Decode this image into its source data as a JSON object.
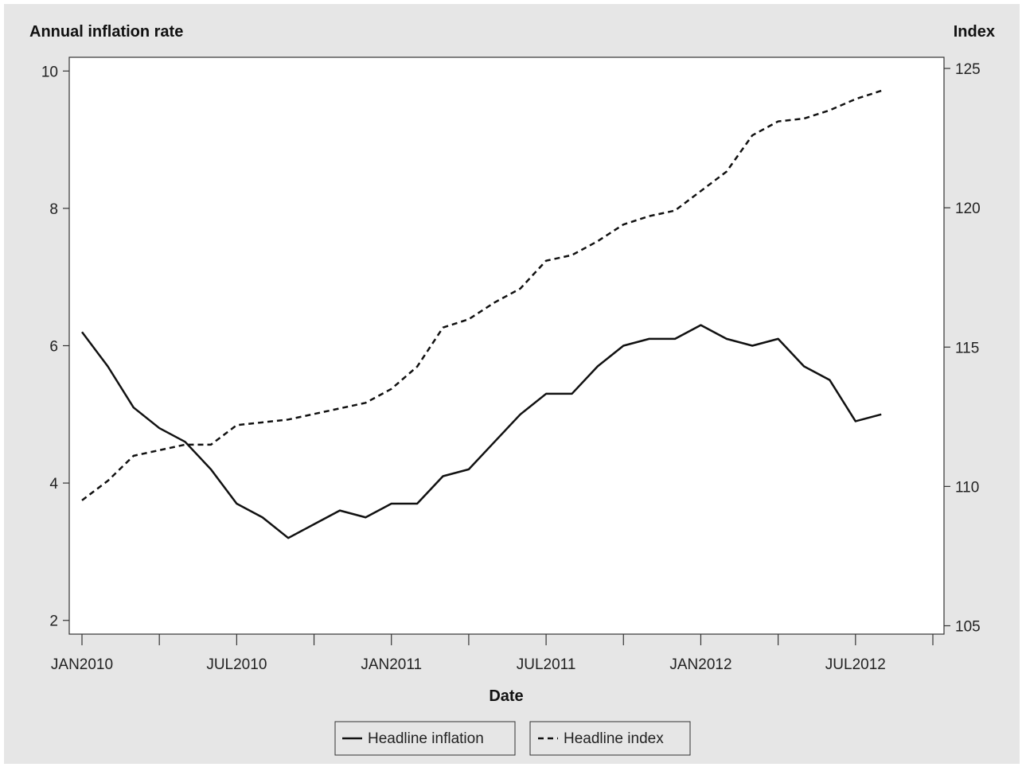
{
  "chart_data": {
    "type": "line",
    "xlabel": "Date",
    "y_left_label": "Annual inflation rate",
    "y_right_label": "Index",
    "x_ticks": [
      "2010-01",
      "2010-04",
      "2010-07",
      "2010-10",
      "2011-01",
      "2011-04",
      "2011-07",
      "2011-10",
      "2012-01",
      "2012-04",
      "2012-07",
      "2012-10"
    ],
    "x_tick_labels": [
      "JAN2010",
      "",
      "JUL2010",
      "",
      "JAN2011",
      "",
      "JUL2011",
      "",
      "JAN2012",
      "",
      "JUL2012",
      ""
    ],
    "xlim": [
      "2010-01",
      "2012-10"
    ],
    "y_left_ticks": [
      2,
      4,
      6,
      8,
      10
    ],
    "y_left_range": [
      1.8,
      10.2
    ],
    "y_right_ticks": [
      105,
      110,
      115,
      120,
      125
    ],
    "y_right_range": [
      104.7,
      125.4
    ],
    "legend_position": "bottom",
    "x": [
      "2010-01",
      "2010-02",
      "2010-03",
      "2010-04",
      "2010-05",
      "2010-06",
      "2010-07",
      "2010-08",
      "2010-09",
      "2010-10",
      "2010-11",
      "2010-12",
      "2011-01",
      "2011-02",
      "2011-03",
      "2011-04",
      "2011-05",
      "2011-06",
      "2011-07",
      "2011-08",
      "2011-09",
      "2011-10",
      "2011-11",
      "2011-12",
      "2012-01",
      "2012-02",
      "2012-03",
      "2012-04",
      "2012-05",
      "2012-06",
      "2012-07",
      "2012-08"
    ],
    "series": [
      {
        "name": "Headline inflation",
        "axis": "left",
        "style": "solid",
        "color": "#111111",
        "values": [
          6.2,
          5.7,
          5.1,
          4.8,
          4.6,
          4.2,
          3.7,
          3.5,
          3.2,
          3.4,
          3.6,
          3.5,
          3.7,
          3.7,
          4.1,
          4.2,
          4.6,
          5.0,
          5.3,
          5.3,
          5.7,
          6.0,
          6.1,
          6.1,
          6.3,
          6.1,
          6.0,
          6.1,
          5.7,
          5.5,
          4.9,
          5.0
        ]
      },
      {
        "name": "Headline index",
        "axis": "right",
        "style": "dashed",
        "color": "#111111",
        "values": [
          109.5,
          110.2,
          111.1,
          111.3,
          111.5,
          111.5,
          112.2,
          112.3,
          112.4,
          112.6,
          112.8,
          113.0,
          113.5,
          114.3,
          115.7,
          116.0,
          116.6,
          117.1,
          118.1,
          118.3,
          118.8,
          119.4,
          119.7,
          119.9,
          120.6,
          121.3,
          122.6,
          123.1,
          123.2,
          123.5,
          123.9,
          124.2
        ]
      }
    ]
  }
}
